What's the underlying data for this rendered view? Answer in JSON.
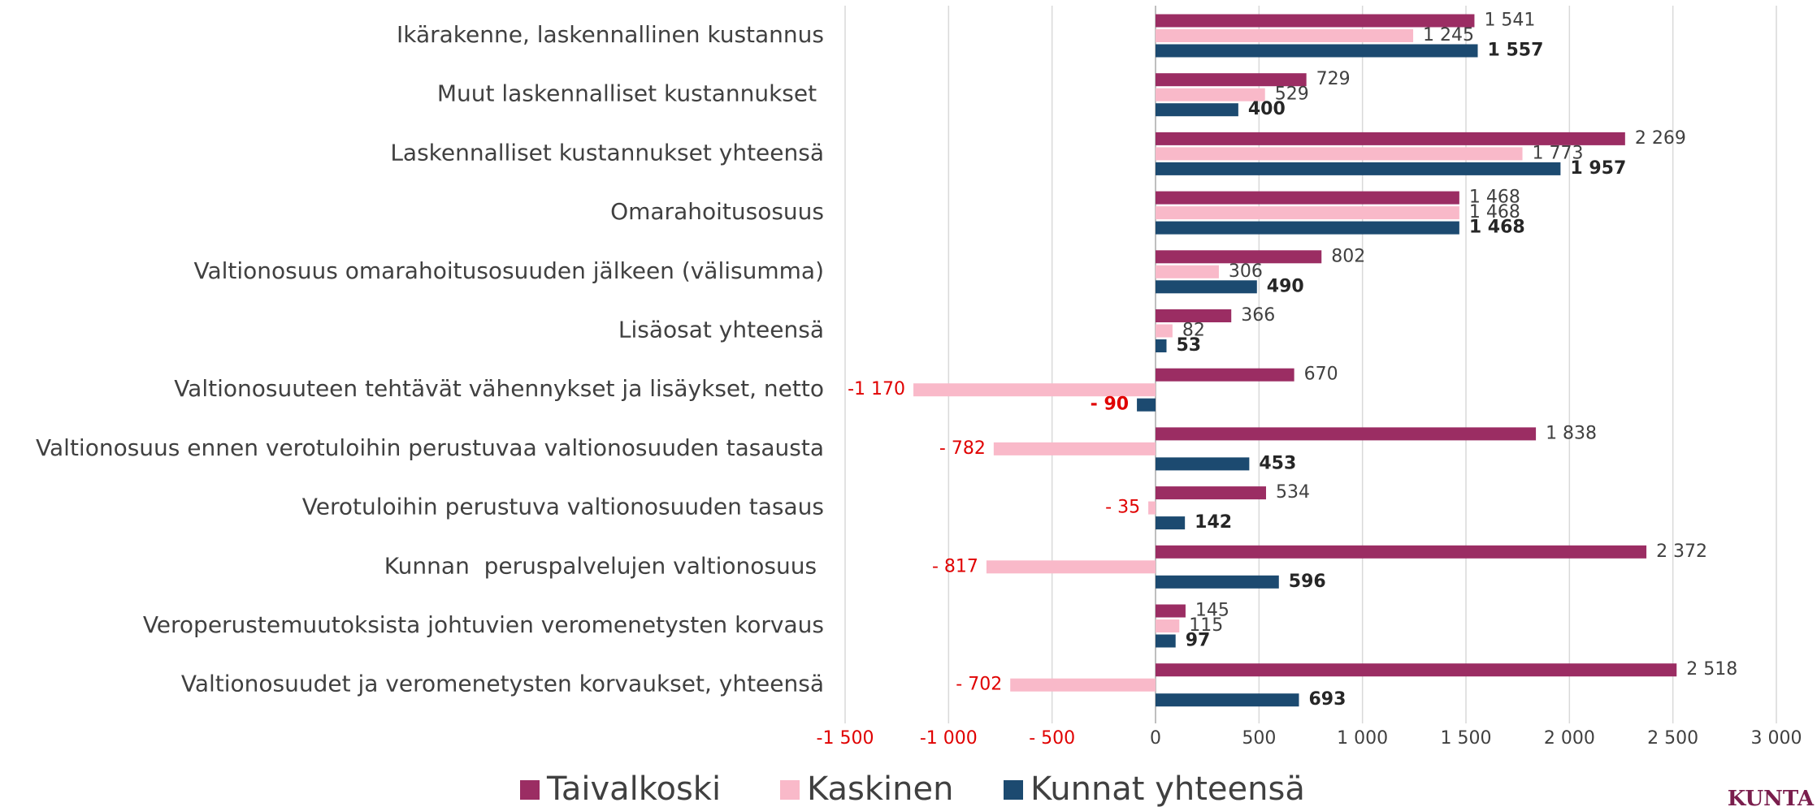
{
  "chart_data": {
    "type": "hbar",
    "categories": [
      "Ikärakenne, laskennallinen kustannus",
      "Muut laskennalliset kustannukset ",
      "Laskennalliset kustannukset yhteensä",
      "Omarahoitusosuus",
      "Valtionosuus omarahoitusosuuden jälkeen (välisumma)",
      "Lisäosat yhteensä",
      "Valtionosuuteen tehtävät vähennykset ja lisäykset, netto",
      "Valtionosuus ennen verotuloihin perustuvaa valtionosuuden tasausta",
      "Verotuloihin perustuva valtionosuuden tasaus",
      "Kunnan  peruspalvelujen valtionosuus ",
      "Veroperustemuutoksista johtuvien veromenetysten korvaus",
      "Valtionosuudet ja veromenetysten korvaukset, yhteensä"
    ],
    "series": [
      {
        "name": "Taivalkoski",
        "color": "#9b2d63",
        "values": [
          1541,
          729,
          2269,
          1468,
          802,
          366,
          670,
          1838,
          534,
          2372,
          145,
          2518
        ],
        "value_labels": [
          "1 541",
          "729",
          "2 269",
          "1 468",
          "802",
          "366",
          "670",
          "1 838",
          "534",
          "2 372",
          "145",
          "2 518"
        ]
      },
      {
        "name": "Kaskinen",
        "color": "#f9b9c9",
        "values": [
          1245,
          529,
          1773,
          1468,
          306,
          82,
          -1170,
          -782,
          -35,
          -817,
          115,
          -702
        ],
        "value_labels": [
          "1 245",
          "529",
          "1 773",
          "1 468",
          "306",
          "82",
          "-1 170",
          "- 782",
          "- 35",
          "- 817",
          "115",
          "- 702"
        ]
      },
      {
        "name": "Kunnat yhteensä",
        "color": "#1c4a70",
        "values": [
          1557,
          400,
          1957,
          1468,
          490,
          53,
          -90,
          453,
          142,
          596,
          97,
          693
        ],
        "value_labels": [
          "1 557",
          "400",
          "1 957",
          "1 468",
          "490",
          "53",
          "- 90",
          "453",
          "142",
          "596",
          "97",
          "693"
        ],
        "bold": true
      }
    ],
    "xlim": [
      -1500,
      3000
    ],
    "xticks": [
      {
        "value": -1500,
        "label": "-1 500"
      },
      {
        "value": -1000,
        "label": "-1 000"
      },
      {
        "value": -500,
        "label": "- 500"
      },
      0,
      500,
      {
        "value": 1000,
        "label": "1 000"
      },
      {
        "value": 1500,
        "label": "1 500"
      },
      {
        "value": 2000,
        "label": "2 000"
      },
      {
        "value": 2500,
        "label": "2 500"
      },
      {
        "value": 3000,
        "label": "3 000"
      }
    ],
    "grid": true,
    "legend": "bottom",
    "brand": "KUNTA"
  }
}
